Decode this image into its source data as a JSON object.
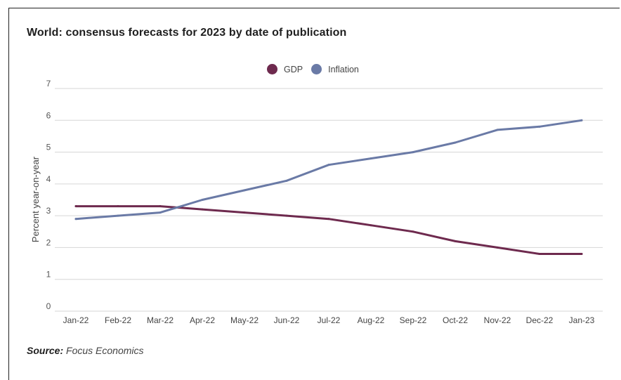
{
  "chart_data": {
    "type": "line",
    "title": "World: consensus forecasts for 2023 by date of publication",
    "xlabel": "",
    "ylabel": "Percent year-on-year",
    "categories": [
      "Jan-22",
      "Feb-22",
      "Mar-22",
      "Apr-22",
      "May-22",
      "Jun-22",
      "Jul-22",
      "Aug-22",
      "Sep-22",
      "Oct-22",
      "Nov-22",
      "Dec-22",
      "Jan-23"
    ],
    "ylim": [
      0,
      7
    ],
    "yticks": [
      "0",
      "1",
      "2",
      "3",
      "4",
      "5",
      "6",
      "7"
    ],
    "grid": true,
    "legend_position": "top-center",
    "series": [
      {
        "name": "GDP",
        "color": "#6e2a4e",
        "values": [
          3.3,
          3.3,
          3.3,
          3.2,
          3.1,
          3.0,
          2.9,
          2.7,
          2.5,
          2.2,
          2.0,
          1.8,
          1.8
        ]
      },
      {
        "name": "Inflation",
        "color": "#6a7aa6",
        "values": [
          2.9,
          3.0,
          3.1,
          3.5,
          3.8,
          4.1,
          4.6,
          4.8,
          5.0,
          5.3,
          5.7,
          5.8,
          6.0
        ]
      }
    ]
  },
  "source": {
    "label": "Source:",
    "text": "Focus Economics"
  }
}
